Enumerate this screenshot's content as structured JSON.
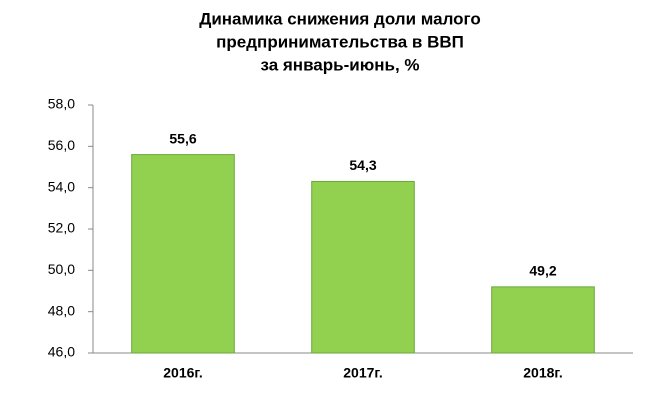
{
  "chart_data": {
    "type": "bar",
    "title": [
      "Динамика снижения  доли малого",
      "предпринимательства в ВВП",
      "за январь-июнь, %"
    ],
    "categories": [
      "2016г.",
      "2017г.",
      "2018г."
    ],
    "values": [
      55.6,
      54.3,
      49.2
    ],
    "value_labels": [
      "55,6",
      "54,3",
      "49,2"
    ],
    "color": "#92d050",
    "ylim": [
      46,
      58
    ],
    "yticks": [
      {
        "value": 46,
        "label": "46,0"
      },
      {
        "value": 48,
        "label": "48,0"
      },
      {
        "value": 50,
        "label": "50,0"
      },
      {
        "value": 52,
        "label": "52,0"
      },
      {
        "value": 54,
        "label": "54,0"
      },
      {
        "value": 56,
        "label": "56,0"
      },
      {
        "value": 58,
        "label": "58,0"
      }
    ],
    "grid": false
  }
}
